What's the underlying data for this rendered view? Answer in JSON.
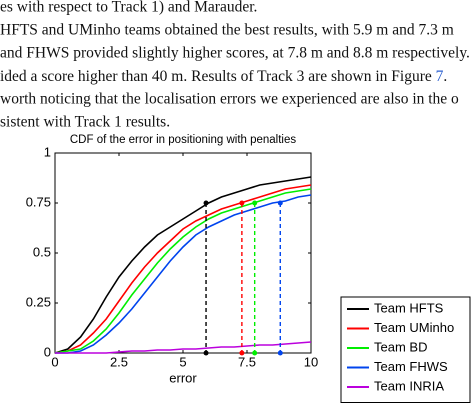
{
  "document": {
    "lines": [
      "es with respect to Track 1) and Marauder.",
      "HFTS and UMinho teams obtained the best results, with 5.9 m and 7.3 m",
      "and FHWS provided slightly higher scores, at 7.8 m and 8.8 m respectively.",
      [
        "ided a score higher than 40 m. Results of Track 3 are shown in Figure ",
        "7",
        "."
      ],
      "worth noticing that the localisation errors we experienced are also in the o",
      "sistent with Track 1 results."
    ]
  },
  "chart_data": {
    "type": "line",
    "title": "CDF of the error in positioning with penalties",
    "x_label": "error",
    "x": [
      0,
      0.5,
      1,
      1.5,
      2,
      2.5,
      3,
      3.5,
      4,
      4.5,
      5,
      5.5,
      6,
      6.5,
      7,
      7.5,
      8,
      8.5,
      9,
      9.5,
      10
    ],
    "series": [
      {
        "name": "Team HFTS",
        "color": "#000000",
        "values": [
          0,
          0.02,
          0.08,
          0.17,
          0.28,
          0.38,
          0.46,
          0.53,
          0.59,
          0.63,
          0.67,
          0.71,
          0.75,
          0.78,
          0.8,
          0.82,
          0.84,
          0.85,
          0.86,
          0.87,
          0.88
        ]
      },
      {
        "name": "Team UMinho",
        "color": "#ff0000",
        "values": [
          0,
          0.01,
          0.04,
          0.1,
          0.17,
          0.26,
          0.35,
          0.43,
          0.5,
          0.56,
          0.62,
          0.66,
          0.69,
          0.72,
          0.74,
          0.76,
          0.78,
          0.8,
          0.82,
          0.83,
          0.84
        ]
      },
      {
        "name": "Team BD",
        "color": "#00ee00",
        "values": [
          0,
          0.01,
          0.02,
          0.06,
          0.12,
          0.2,
          0.29,
          0.37,
          0.45,
          0.52,
          0.58,
          0.63,
          0.67,
          0.7,
          0.72,
          0.74,
          0.76,
          0.78,
          0.8,
          0.81,
          0.82
        ]
      },
      {
        "name": "Team FHWS",
        "color": "#0044ee",
        "values": [
          0,
          0,
          0.01,
          0.04,
          0.09,
          0.15,
          0.22,
          0.3,
          0.38,
          0.46,
          0.53,
          0.59,
          0.63,
          0.66,
          0.69,
          0.71,
          0.73,
          0.75,
          0.76,
          0.78,
          0.79
        ]
      },
      {
        "name": "Team INRIA",
        "color": "#bb00dd",
        "values": [
          0,
          0,
          0,
          0,
          0,
          0.005,
          0.01,
          0.01,
          0.015,
          0.015,
          0.02,
          0.02,
          0.025,
          0.03,
          0.03,
          0.035,
          0.04,
          0.04,
          0.045,
          0.05,
          0.055
        ]
      }
    ],
    "reference_lines": [
      {
        "x": 5.9,
        "y": 0.75,
        "color": "#000000"
      },
      {
        "x": 7.3,
        "y": 0.75,
        "color": "#ff0000"
      },
      {
        "x": 7.8,
        "y": 0.75,
        "color": "#00ee00"
      },
      {
        "x": 8.8,
        "y": 0.75,
        "color": "#0044ee"
      }
    ],
    "xlim": [
      0,
      10
    ],
    "xticks": [
      0,
      2.5,
      5,
      7.5,
      10
    ],
    "ylim": [
      0,
      1
    ],
    "yticks": [
      0,
      0.25,
      0.5,
      0.75,
      1
    ],
    "legend": "lower right"
  }
}
